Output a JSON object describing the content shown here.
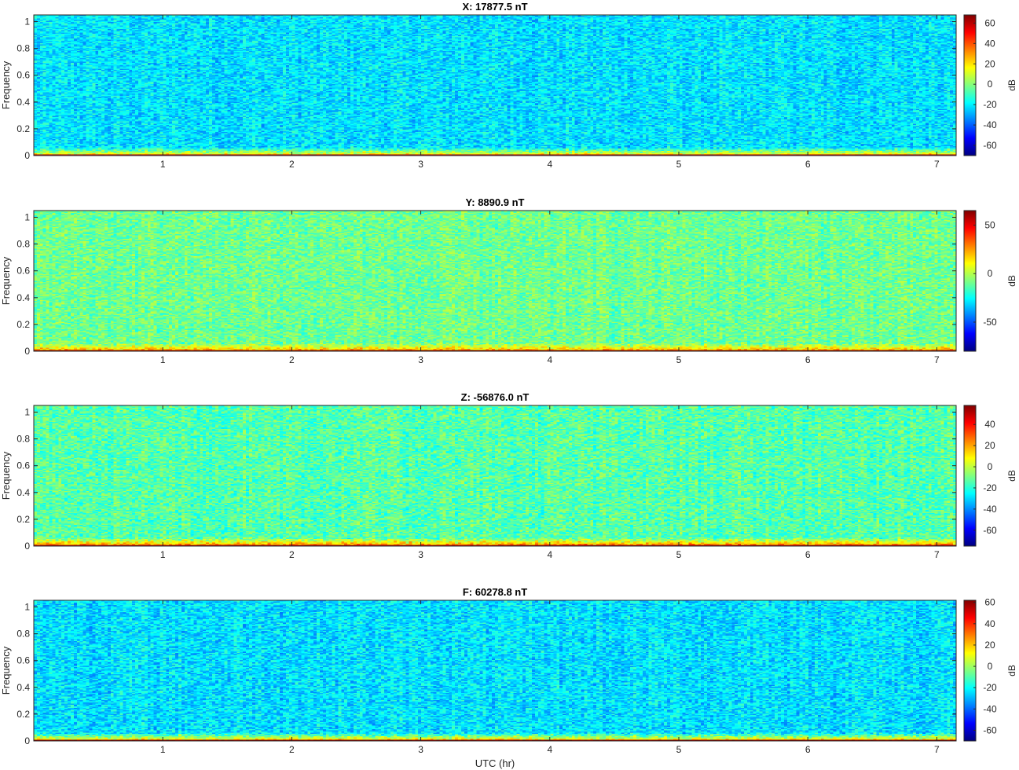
{
  "chart_data": [
    {
      "type": "heatmap",
      "title": "X: 17877.5 nT",
      "xlabel": "",
      "ylabel": "Frequency",
      "xlim": [
        0,
        7.15
      ],
      "ylim": [
        0,
        1.05
      ],
      "xticks": [
        1,
        2,
        3,
        4,
        5,
        6,
        7
      ],
      "yticks": [
        0,
        0.2,
        0.4,
        0.6,
        0.8,
        1
      ],
      "colormap": "jet",
      "colorbar": {
        "label": "dB",
        "limits": [
          -70,
          68
        ],
        "ticks": [
          -60,
          -40,
          -20,
          0,
          20,
          40,
          60
        ]
      },
      "background_db": -22,
      "low_band_db": 22,
      "dc_db": 62
    },
    {
      "type": "heatmap",
      "title": "Y: 8890.9 nT",
      "xlabel": "",
      "ylabel": "Frequency",
      "xlim": [
        0,
        7.15
      ],
      "ylim": [
        0,
        1.05
      ],
      "xticks": [
        1,
        2,
        3,
        4,
        5,
        6,
        7
      ],
      "yticks": [
        0,
        0.2,
        0.4,
        0.6,
        0.8,
        1
      ],
      "colormap": "jet",
      "colorbar": {
        "label": "dB",
        "limits": [
          -80,
          65
        ],
        "ticks": [
          -50,
          0,
          50
        ]
      },
      "background_db": -10,
      "low_band_db": 25,
      "dc_db": 60
    },
    {
      "type": "heatmap",
      "title": "Z: -56876.0 nT",
      "xlabel": "",
      "ylabel": "Frequency",
      "xlim": [
        0,
        7.15
      ],
      "ylim": [
        0,
        1.05
      ],
      "xticks": [
        1,
        2,
        3,
        4,
        5,
        6,
        7
      ],
      "yticks": [
        0,
        0.2,
        0.4,
        0.6,
        0.8,
        1
      ],
      "colormap": "jet",
      "colorbar": {
        "label": "dB",
        "limits": [
          -75,
          58
        ],
        "ticks": [
          -60,
          -40,
          -20,
          0,
          20,
          40
        ]
      },
      "background_db": -14,
      "low_band_db": 28,
      "dc_db": 50
    },
    {
      "type": "heatmap",
      "title": "F: 60278.8 nT",
      "xlabel": "UTC (hr)",
      "ylabel": "Frequency",
      "xlim": [
        0,
        7.15
      ],
      "ylim": [
        0,
        1.05
      ],
      "xticks": [
        1,
        2,
        3,
        4,
        5,
        6,
        7
      ],
      "yticks": [
        0,
        0.2,
        0.4,
        0.6,
        0.8,
        1
      ],
      "colormap": "jet",
      "colorbar": {
        "label": "dB",
        "limits": [
          -70,
          62
        ],
        "ticks": [
          -60,
          -40,
          -20,
          0,
          20,
          40,
          60
        ]
      },
      "background_db": -24,
      "low_band_db": 22,
      "dc_db": 58
    }
  ]
}
